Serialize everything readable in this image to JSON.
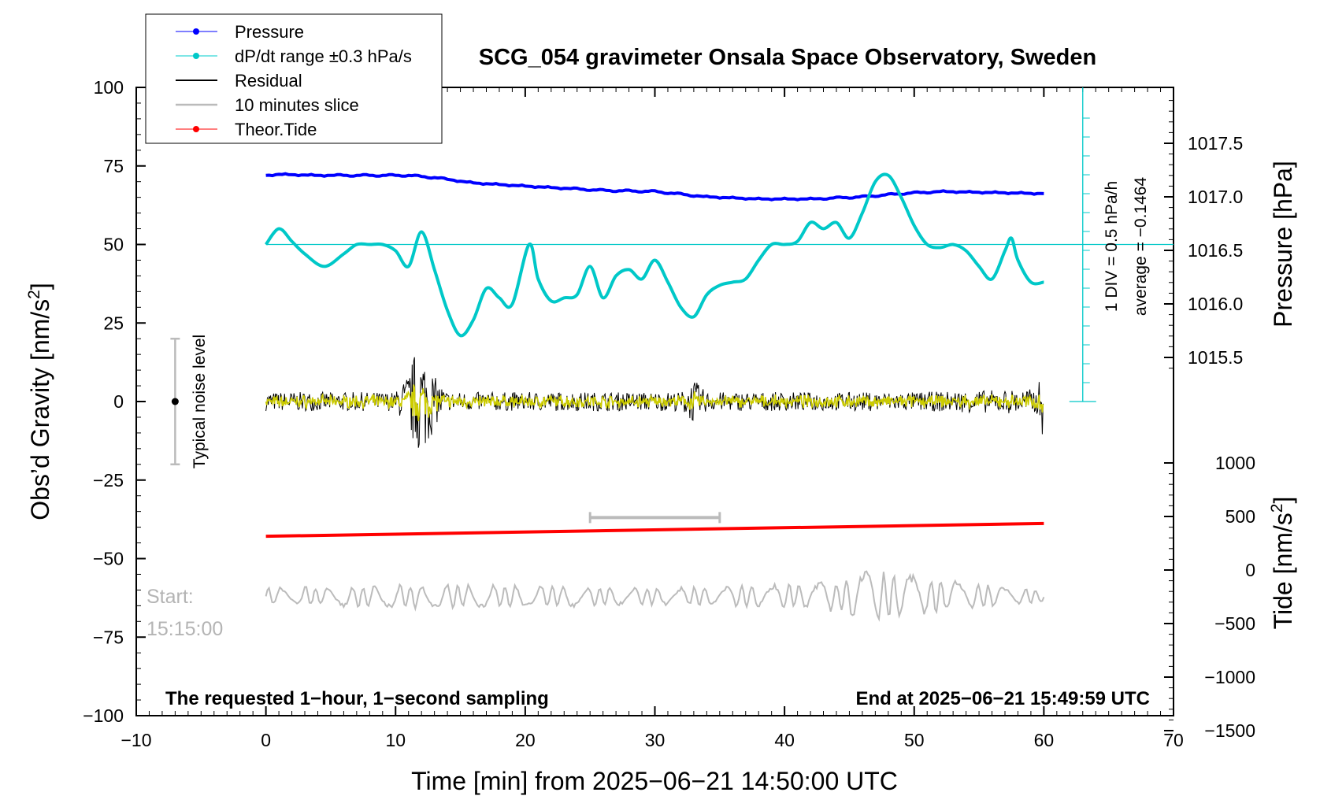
{
  "chart_data": {
    "type": "line",
    "title": "SCG_054 gravimeter Onsala Space Observatory, Sweden",
    "xlabel": "Time [min] from 2025−06−21 14:50:00 UTC",
    "ylabel_left": "Obs’d Gravity [nm/s",
    "ylabel_left_sup": "2",
    "ylabel_left_end": "]",
    "ylabel_right_top": "Pressure [hPa]",
    "ylabel_right_bottom": "Tide [nm/s",
    "ylabel_right_bottom_sup": "2",
    "ylabel_right_bottom_end": "]",
    "xlim": [
      -10,
      70
    ],
    "ylim": [
      -100,
      100
    ],
    "xticks": [
      -10,
      0,
      10,
      20,
      30,
      40,
      50,
      60,
      70
    ],
    "xtick_labels": [
      "−10",
      "0",
      "10",
      "20",
      "30",
      "40",
      "50",
      "60",
      "70"
    ],
    "yticks": [
      -100,
      -75,
      -50,
      -25,
      0,
      25,
      50,
      75,
      100
    ],
    "ytick_labels": [
      "−100",
      "−75",
      "−50",
      "−25",
      "0",
      "25",
      "50",
      "75",
      "100"
    ],
    "pressure_axis": {
      "ticks": [
        1015.5,
        1016.0,
        1016.5,
        1017.0,
        1017.5
      ],
      "tick_labels": [
        "1015.5",
        "1016.0",
        "1016.5",
        "1017.0",
        "1017.5"
      ]
    },
    "tide_axis": {
      "ticks": [
        1000,
        500,
        0,
        -500,
        -1000,
        -1500
      ],
      "tick_labels": [
        "1000",
        "500",
        "0",
        "−500",
        "−1000",
        "−1500"
      ]
    },
    "series": [
      {
        "name": "Pressure",
        "color": "#0000ff",
        "axis": "pressure_hPa",
        "x": [
          0,
          1,
          4,
          8,
          11,
          13,
          16,
          20,
          26,
          30,
          34,
          38,
          42,
          46,
          49,
          52,
          56,
          60
        ],
        "values": [
          1017.2,
          1017.21,
          1017.2,
          1017.2,
          1017.2,
          1017.18,
          1017.13,
          1017.1,
          1017.06,
          1017.05,
          1017.0,
          1016.98,
          1016.98,
          1017.0,
          1017.03,
          1017.05,
          1017.04,
          1017.03
        ]
      },
      {
        "name": "dP/dt range ±0.3 hPa/s",
        "color": "#00c8c8",
        "axis": "gravity_nm_s2",
        "x": [
          0,
          1,
          2,
          3,
          4.5,
          6,
          7,
          8,
          9,
          10,
          11,
          12,
          13,
          14,
          15,
          16,
          17,
          18,
          19,
          20.3,
          21,
          22,
          23,
          24,
          25,
          26,
          27,
          28,
          29,
          30,
          31,
          32,
          33,
          34,
          35,
          36,
          37,
          38,
          39,
          40,
          41,
          42,
          43,
          44,
          45,
          46,
          47,
          48,
          49,
          50,
          51,
          52,
          53,
          54,
          55,
          56,
          57,
          57.5,
          58,
          59,
          60
        ],
        "values": [
          50,
          55,
          51,
          47,
          43,
          47,
          50,
          50,
          50,
          48,
          43,
          54,
          42,
          29,
          21,
          26,
          36,
          33,
          31,
          50,
          39,
          32,
          33,
          34,
          43,
          33,
          40,
          42,
          39,
          45,
          38,
          30,
          27,
          34,
          37,
          38,
          39,
          45,
          50,
          50,
          51,
          57,
          55,
          57,
          52,
          60,
          70,
          72,
          65,
          56,
          50,
          49,
          50,
          48,
          43,
          39,
          48,
          52,
          45,
          38,
          38
        ]
      },
      {
        "name": "Residual",
        "color": "#000000",
        "axis": "gravity_nm_s2",
        "x_range": [
          0,
          60
        ],
        "noise_envelope": {
          "x": [
            0,
            10,
            11,
            11.5,
            12,
            12.5,
            13,
            14,
            20,
            32,
            33,
            34,
            40,
            50,
            59.5,
            60
          ],
          "amplitude": [
            3,
            3,
            9,
            16,
            17,
            14,
            8,
            3,
            3,
            3,
            7,
            3,
            3,
            3,
            4,
            13
          ]
        }
      },
      {
        "name": "10 minutes slice",
        "color": "#bbbbbb",
        "axis": "gravity_nm_s2",
        "x_range": [
          0,
          60
        ],
        "center": -62,
        "amplitude_envelope": {
          "x": [
            0,
            10,
            20,
            30,
            40,
            44,
            46,
            48,
            50,
            52,
            56,
            60
          ],
          "amplitude": [
            3,
            4,
            4,
            3,
            4,
            5,
            9,
            8,
            7,
            6,
            4,
            2
          ]
        }
      },
      {
        "name": "Theor.Tide",
        "color": "#ff0000",
        "axis": "tide_nm_s2",
        "x": [
          0,
          60
        ],
        "values": [
          315,
          435
        ]
      }
    ],
    "yellow_trace_color": "#cccc00",
    "noise_bar": {
      "label": "Typical noise level",
      "x": -7,
      "center": 0,
      "ymin": -20,
      "ymax": 20
    },
    "slice_marker": {
      "x_range": [
        25,
        35
      ],
      "tide_value": 490
    },
    "pressure_rate_scale": {
      "label_line1": "1 DIV = 0.5 hPa/h",
      "label_line2": "average = −0.1464"
    },
    "annotations": {
      "start_line1": "Start:",
      "start_line2": "15:15:00",
      "bottom_left": "The requested 1−hour, 1−second sampling",
      "bottom_right": "End at 2025−06−21 15:49:59 UTC"
    },
    "legend_position": "top-left",
    "grid": false
  }
}
